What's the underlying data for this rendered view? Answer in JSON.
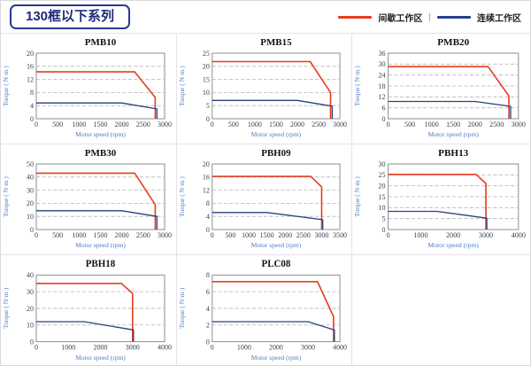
{
  "header": {
    "title": "130框以下系列"
  },
  "legend": {
    "separator": "|",
    "items": [
      {
        "key": "intermittent",
        "label": "间歇工作区",
        "color": "#e73c1e"
      },
      {
        "key": "continuous",
        "label": "连续工作区",
        "color": "#24408e"
      }
    ]
  },
  "chart_data": [
    {
      "type": "line",
      "title": "PMB10",
      "xlabel": "Motor speed (rpm)",
      "ylabel": "Torque ( N·m )",
      "xlim": [
        0,
        3000
      ],
      "xticks": [
        0,
        500,
        1000,
        1500,
        2000,
        2500,
        3000
      ],
      "ylim": [
        0,
        20
      ],
      "yticks": [
        0,
        4,
        8,
        12,
        16,
        20
      ],
      "grid": "dashed-horizontal",
      "series": [
        {
          "key": "intermittent",
          "name": "间歇工作区",
          "color": "#e73c1e",
          "points": [
            [
              0,
              14.3
            ],
            [
              2300,
              14.3
            ],
            [
              2780,
              6.5
            ],
            [
              2780,
              0
            ]
          ]
        },
        {
          "key": "continuous",
          "name": "连续工作区",
          "color": "#2a4080",
          "points": [
            [
              0,
              4.8
            ],
            [
              2000,
              4.8
            ],
            [
              2820,
              3
            ],
            [
              2820,
              0
            ]
          ]
        }
      ]
    },
    {
      "type": "line",
      "title": "PMB15",
      "xlabel": "Motor speed (rpm)",
      "ylabel": "Torque ( N·m )",
      "xlim": [
        0,
        3000
      ],
      "xticks": [
        0,
        500,
        1000,
        1500,
        2000,
        2500,
        3000
      ],
      "ylim": [
        0,
        25
      ],
      "yticks": [
        0,
        5,
        10,
        15,
        20,
        25
      ],
      "grid": "dashed-horizontal",
      "series": [
        {
          "key": "intermittent",
          "name": "间歇工作区",
          "color": "#e73c1e",
          "points": [
            [
              0,
              21.8
            ],
            [
              2300,
              21.8
            ],
            [
              2780,
              10
            ],
            [
              2780,
              0
            ]
          ]
        },
        {
          "key": "continuous",
          "name": "连续工作区",
          "color": "#2a4080",
          "points": [
            [
              0,
              7
            ],
            [
              2000,
              7
            ],
            [
              2820,
              4.8
            ],
            [
              2820,
              0
            ]
          ]
        }
      ]
    },
    {
      "type": "line",
      "title": "PMB20",
      "xlabel": "Motor speed (rpm)",
      "ylabel": "Torque ( N·m )",
      "xlim": [
        0,
        3000
      ],
      "xticks": [
        0,
        500,
        1000,
        1500,
        2000,
        2500,
        3000
      ],
      "ylim": [
        0,
        36
      ],
      "yticks": [
        0,
        6,
        12,
        18,
        24,
        30,
        36
      ],
      "grid": "dashed-horizontal",
      "series": [
        {
          "key": "intermittent",
          "name": "间歇工作区",
          "color": "#e73c1e",
          "points": [
            [
              0,
              28.6
            ],
            [
              2300,
              28.6
            ],
            [
              2780,
              12.5
            ],
            [
              2780,
              0
            ]
          ]
        },
        {
          "key": "continuous",
          "name": "连续工作区",
          "color": "#2a4080",
          "points": [
            [
              0,
              9.5
            ],
            [
              2000,
              9.5
            ],
            [
              2820,
              6.8
            ],
            [
              2820,
              0
            ]
          ]
        }
      ]
    },
    {
      "type": "line",
      "title": "PMB30",
      "xlabel": "Motor speed (rpm)",
      "ylabel": "Torque ( N·m )",
      "xlim": [
        0,
        3000
      ],
      "xticks": [
        0,
        500,
        1000,
        1500,
        2000,
        2500,
        3000
      ],
      "ylim": [
        0,
        50
      ],
      "yticks": [
        0,
        10,
        20,
        30,
        40,
        50
      ],
      "grid": "dashed-horizontal",
      "series": [
        {
          "key": "intermittent",
          "name": "间歇工作区",
          "color": "#e73c1e",
          "points": [
            [
              0,
              43
            ],
            [
              2300,
              43
            ],
            [
              2780,
              19
            ],
            [
              2780,
              0
            ]
          ]
        },
        {
          "key": "continuous",
          "name": "连续工作区",
          "color": "#2a4080",
          "points": [
            [
              0,
              14.3
            ],
            [
              2000,
              14.3
            ],
            [
              2820,
              10
            ],
            [
              2820,
              0
            ]
          ]
        }
      ]
    },
    {
      "type": "line",
      "title": "PBH09",
      "xlabel": "Motor speed (rpm)",
      "ylabel": "Torque ( N·m )",
      "xlim": [
        0,
        3500
      ],
      "xticks": [
        0,
        500,
        1000,
        1500,
        2000,
        2500,
        3000,
        3500
      ],
      "ylim": [
        0,
        20
      ],
      "yticks": [
        0,
        4,
        8,
        12,
        16,
        20
      ],
      "grid": "dashed-horizontal",
      "series": [
        {
          "key": "intermittent",
          "name": "间歇工作区",
          "color": "#e73c1e",
          "points": [
            [
              0,
              16.2
            ],
            [
              2700,
              16.2
            ],
            [
              3000,
              13
            ],
            [
              3000,
              0
            ]
          ]
        },
        {
          "key": "continuous",
          "name": "连续工作区",
          "color": "#2a4080",
          "points": [
            [
              0,
              5.2
            ],
            [
              1500,
              5.2
            ],
            [
              3030,
              3
            ],
            [
              3030,
              0
            ]
          ]
        }
      ]
    },
    {
      "type": "line",
      "title": "PBH13",
      "xlabel": "Motor speed (rpm)",
      "ylabel": "Torque ( N·m )",
      "xlim": [
        0,
        4000
      ],
      "xticks": [
        0,
        1000,
        2000,
        3000,
        4000
      ],
      "ylim": [
        0,
        30
      ],
      "yticks": [
        0,
        5,
        10,
        15,
        20,
        25,
        30
      ],
      "grid": "dashed-horizontal",
      "series": [
        {
          "key": "intermittent",
          "name": "间歇工作区",
          "color": "#e73c1e",
          "points": [
            [
              0,
              25.2
            ],
            [
              2700,
              25.2
            ],
            [
              3000,
              21
            ],
            [
              3000,
              0
            ]
          ]
        },
        {
          "key": "continuous",
          "name": "连续工作区",
          "color": "#2a4080",
          "points": [
            [
              0,
              8.3
            ],
            [
              1500,
              8.3
            ],
            [
              3030,
              5.2
            ],
            [
              3030,
              0
            ]
          ]
        }
      ]
    },
    {
      "type": "line",
      "title": "PBH18",
      "xlabel": "Motor speed (rpm)",
      "ylabel": "Torque ( N·m )",
      "xlim": [
        0,
        4000
      ],
      "xticks": [
        0,
        1000,
        2000,
        3000,
        4000
      ],
      "ylim": [
        0,
        40
      ],
      "yticks": [
        0,
        10,
        20,
        30,
        40
      ],
      "grid": "dashed-horizontal",
      "series": [
        {
          "key": "intermittent",
          "name": "间歇工作区",
          "color": "#e73c1e",
          "points": [
            [
              0,
              35
            ],
            [
              2650,
              35
            ],
            [
              3000,
              29
            ],
            [
              3000,
              0
            ]
          ]
        },
        {
          "key": "continuous",
          "name": "连续工作区",
          "color": "#2a4080",
          "points": [
            [
              0,
              12
            ],
            [
              1500,
              12
            ],
            [
              3030,
              7
            ],
            [
              3030,
              0
            ]
          ]
        }
      ]
    },
    {
      "type": "line",
      "title": "PLC08",
      "xlabel": "Motor speed (rpm)",
      "ylabel": "Torque ( N·m )",
      "xlim": [
        0,
        4000
      ],
      "xticks": [
        0,
        1000,
        2000,
        3000,
        4000
      ],
      "ylim": [
        0,
        8
      ],
      "yticks": [
        0,
        2,
        4,
        6,
        8
      ],
      "grid": "dashed-horizontal",
      "series": [
        {
          "key": "intermittent",
          "name": "间歇工作区",
          "color": "#e73c1e",
          "points": [
            [
              0,
              7.2
            ],
            [
              3300,
              7.2
            ],
            [
              3800,
              3
            ],
            [
              3800,
              0
            ]
          ]
        },
        {
          "key": "continuous",
          "name": "连续工作区",
          "color": "#2a4080",
          "points": [
            [
              0,
              2.4
            ],
            [
              3000,
              2.4
            ],
            [
              3830,
              1.4
            ],
            [
              3830,
              0
            ]
          ]
        }
      ]
    }
  ]
}
